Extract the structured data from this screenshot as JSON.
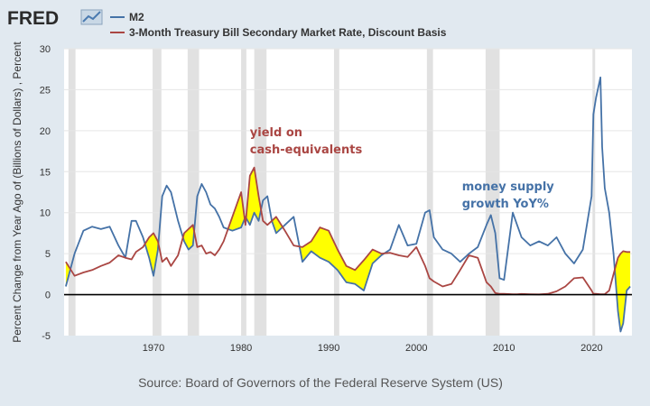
{
  "header": {
    "logo_text": "FRED"
  },
  "legend": [
    {
      "label": "M2",
      "color": "#4572a7"
    },
    {
      "label": "3-Month Treasury Bill Secondary Market Rate, Discount Basis",
      "color": "#aa4643"
    }
  ],
  "annotations": {
    "tbill": {
      "lines": [
        "yield on",
        "cash-equivalents"
      ],
      "color": "#aa4643",
      "x": 1981.0,
      "y": 19.3
    },
    "m2": {
      "lines": [
        "money supply",
        "growth YoY%"
      ],
      "color": "#4572a7",
      "x": 2005.2,
      "y": 12.7
    }
  },
  "source": "Source: Board of Governors of the Federal Reserve System (US)",
  "colors": {
    "background": "#e1e9f0",
    "plot_background": "#ffffff",
    "grid": "#e6e6e6",
    "recession": "#e1e1e1",
    "highlight_fill": "#ffff00",
    "zero_line": "#000000"
  },
  "chart_data": {
    "type": "line",
    "title": "",
    "xlabel": "",
    "ylabel": "Percent Change from Year Ago of (Billions of Dollars) , Percent",
    "xlim": [
      1959.8,
      2024.6
    ],
    "ylim": [
      -5,
      30
    ],
    "yticks": [
      -5,
      0,
      5,
      10,
      15,
      20,
      25,
      30
    ],
    "xticks": [
      1970,
      1980,
      1990,
      2000,
      2010,
      2020
    ],
    "grid": true,
    "legend_position": "top-left",
    "recessions": [
      [
        1960.3,
        1961.1
      ],
      [
        1969.9,
        1970.9
      ],
      [
        1973.9,
        1975.2
      ],
      [
        1980.0,
        1980.6
      ],
      [
        1981.5,
        1982.9
      ],
      [
        1990.6,
        1991.2
      ],
      [
        2001.2,
        2001.9
      ],
      [
        2007.9,
        2009.5
      ],
      [
        2020.1,
        2020.4
      ]
    ],
    "series": [
      {
        "name": "M2",
        "color": "#4572a7",
        "x": [
          1960.0,
          1961.0,
          1962.0,
          1963.0,
          1964.0,
          1965.0,
          1966.0,
          1966.8,
          1967.5,
          1968.0,
          1968.8,
          1969.5,
          1970.0,
          1970.5,
          1971.0,
          1971.5,
          1972.0,
          1972.8,
          1973.5,
          1974.0,
          1974.5,
          1975.0,
          1975.5,
          1976.0,
          1976.5,
          1977.0,
          1977.5,
          1978.0,
          1979.0,
          1980.0,
          1980.5,
          1981.0,
          1981.5,
          1982.0,
          1982.5,
          1983.0,
          1983.5,
          1984.0,
          1985.0,
          1986.0,
          1987.0,
          1988.0,
          1989.0,
          1990.0,
          1991.0,
          1992.0,
          1993.0,
          1994.0,
          1995.0,
          1996.0,
          1997.0,
          1998.0,
          1999.0,
          2000.0,
          2001.0,
          2001.5,
          2002.0,
          2003.0,
          2004.0,
          2005.0,
          2006.0,
          2007.0,
          2008.0,
          2008.5,
          2009.0,
          2009.5,
          2010.0,
          2011.0,
          2011.5,
          2012.0,
          2013.0,
          2014.0,
          2015.0,
          2016.0,
          2017.0,
          2018.0,
          2019.0,
          2020.0,
          2020.2,
          2020.5,
          2021.0,
          2021.2,
          2021.5,
          2022.0,
          2022.5,
          2023.0,
          2023.3,
          2023.6,
          2024.0,
          2024.4
        ],
        "values": [
          1.0,
          5.0,
          7.8,
          8.3,
          8.0,
          8.3,
          6.0,
          4.5,
          9.0,
          9.0,
          7.0,
          4.5,
          2.3,
          5.5,
          12.0,
          13.3,
          12.5,
          9.0,
          6.5,
          5.5,
          6.0,
          12.0,
          13.5,
          12.5,
          11.0,
          10.5,
          9.5,
          8.2,
          7.8,
          8.2,
          9.5,
          8.5,
          10.0,
          9.0,
          11.5,
          12.0,
          9.0,
          7.5,
          8.5,
          9.5,
          4.0,
          5.3,
          4.5,
          4.0,
          3.0,
          1.5,
          1.3,
          0.5,
          3.8,
          4.8,
          5.5,
          8.5,
          6.0,
          6.2,
          10.0,
          10.3,
          7.0,
          5.5,
          5.0,
          4.0,
          5.0,
          5.8,
          8.5,
          9.7,
          7.5,
          2.0,
          1.8,
          10.0,
          8.5,
          7.0,
          6.0,
          6.5,
          6.0,
          7.0,
          5.0,
          3.8,
          5.5,
          12.0,
          22.0,
          24.0,
          26.5,
          18.0,
          13.0,
          10.0,
          5.0,
          -2.0,
          -4.5,
          -3.5,
          0.5,
          1.0
        ]
      },
      {
        "name": "3-Month Treasury Bill Secondary Market Rate, Discount Basis",
        "color": "#aa4643",
        "x": [
          1960.0,
          1961.0,
          1962.0,
          1963.0,
          1964.0,
          1965.0,
          1966.0,
          1966.8,
          1967.5,
          1968.0,
          1968.8,
          1969.5,
          1970.0,
          1970.5,
          1971.0,
          1971.5,
          1972.0,
          1972.8,
          1973.5,
          1974.0,
          1974.5,
          1975.0,
          1975.5,
          1976.0,
          1976.5,
          1977.0,
          1977.5,
          1978.0,
          1979.0,
          1980.0,
          1980.5,
          1981.0,
          1981.5,
          1982.0,
          1982.5,
          1983.0,
          1983.5,
          1984.0,
          1985.0,
          1986.0,
          1987.0,
          1988.0,
          1989.0,
          1990.0,
          1991.0,
          1992.0,
          1993.0,
          1994.0,
          1995.0,
          1996.0,
          1997.0,
          1998.0,
          1999.0,
          2000.0,
          2001.0,
          2001.5,
          2002.0,
          2003.0,
          2004.0,
          2005.0,
          2006.0,
          2007.0,
          2008.0,
          2008.5,
          2009.0,
          2009.5,
          2010.0,
          2011.0,
          2011.5,
          2012.0,
          2013.0,
          2014.0,
          2015.0,
          2016.0,
          2017.0,
          2018.0,
          2019.0,
          2020.0,
          2020.2,
          2020.5,
          2021.0,
          2021.2,
          2021.5,
          2022.0,
          2022.5,
          2023.0,
          2023.3,
          2023.6,
          2024.0,
          2024.4
        ],
        "values": [
          4.0,
          2.3,
          2.7,
          3.0,
          3.5,
          3.9,
          4.8,
          4.5,
          4.3,
          5.2,
          5.8,
          7.0,
          7.5,
          6.5,
          4.0,
          4.5,
          3.5,
          4.8,
          7.5,
          8.0,
          8.5,
          5.8,
          6.0,
          5.0,
          5.2,
          4.8,
          5.5,
          6.5,
          9.5,
          12.5,
          8.5,
          14.5,
          15.5,
          12.0,
          9.0,
          8.5,
          9.0,
          9.5,
          7.8,
          6.0,
          5.8,
          6.5,
          8.2,
          7.8,
          5.5,
          3.5,
          3.0,
          4.2,
          5.5,
          5.0,
          5.1,
          4.8,
          4.6,
          5.8,
          3.5,
          2.0,
          1.6,
          1.0,
          1.3,
          3.0,
          4.8,
          4.5,
          1.5,
          1.0,
          0.2,
          0.1,
          0.1,
          0.05,
          0.05,
          0.08,
          0.05,
          0.03,
          0.1,
          0.4,
          1.0,
          2.0,
          2.1,
          0.5,
          0.1,
          0.1,
          0.05,
          0.05,
          0.05,
          0.5,
          2.5,
          4.5,
          5.0,
          5.3,
          5.2,
          5.2
        ]
      }
    ]
  }
}
